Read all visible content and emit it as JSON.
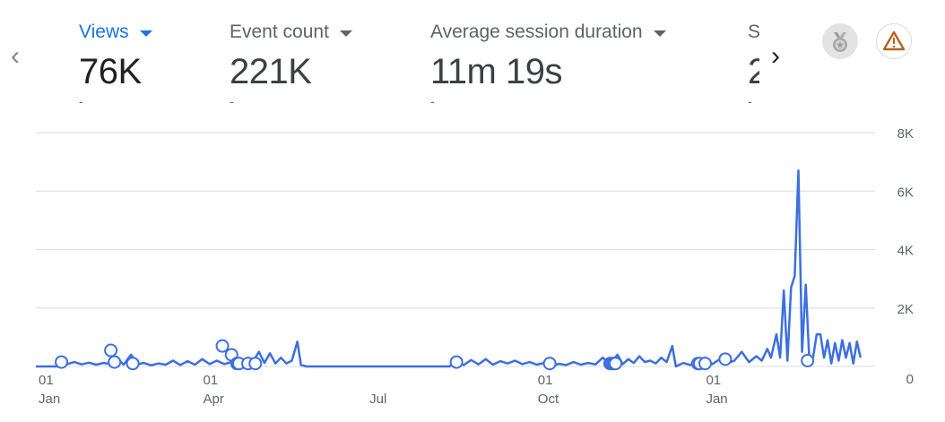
{
  "nav": {
    "prev_icon": "‹",
    "next_icon": "›"
  },
  "metrics": [
    {
      "label": "Views",
      "value": "76K",
      "delta": "-",
      "active": true
    },
    {
      "label": "Event count",
      "value": "221K",
      "delta": "-",
      "active": false
    },
    {
      "label": "Average session duration",
      "value": "11m 19s",
      "delta": "-",
      "active": false
    },
    {
      "label": "S",
      "value": "2",
      "delta": "-",
      "active": false
    }
  ],
  "badges": {
    "medal_icon": "medal-icon",
    "warning_icon": "warning-icon"
  },
  "colors": {
    "accent": "#1a73e8",
    "line": "#3c6fe0",
    "grid": "#dadce0",
    "warning": "#b5651d"
  },
  "chart_data": {
    "type": "line",
    "y_ticks": [
      "8K",
      "6K",
      "4K",
      "2K",
      "0"
    ],
    "y_tick_values": [
      8000,
      6000,
      4000,
      2000,
      0
    ],
    "ylim": [
      0,
      8000
    ],
    "x_ticks": [
      {
        "day": "01",
        "month": "Jan",
        "date": "2023-01-01"
      },
      {
        "day": "01",
        "month": "Apr",
        "date": "2023-04-01"
      },
      {
        "day": "",
        "month": "Jul",
        "date": "2023-07-01"
      },
      {
        "day": "01",
        "month": "Oct",
        "date": "2023-10-01"
      },
      {
        "day": "01",
        "month": "Jan",
        "date": "2024-01-01"
      }
    ],
    "x_range": [
      "2023-01-01",
      "2024-03-31"
    ],
    "series": [
      {
        "values": [
          [
            "2023-01-01",
            0
          ],
          [
            "2023-01-14",
            0
          ],
          [
            "2023-01-22",
            150
          ],
          [
            "2023-01-26",
            70
          ],
          [
            "2023-01-30",
            130
          ],
          [
            "2023-02-03",
            60
          ],
          [
            "2023-02-07",
            120
          ],
          [
            "2023-02-11",
            80
          ],
          [
            "2023-02-15",
            250
          ],
          [
            "2023-02-18",
            60
          ],
          [
            "2023-02-22",
            400
          ],
          [
            "2023-02-26",
            80
          ],
          [
            "2023-03-01",
            120
          ],
          [
            "2023-03-05",
            40
          ],
          [
            "2023-03-09",
            100
          ],
          [
            "2023-03-13",
            60
          ],
          [
            "2023-03-17",
            200
          ],
          [
            "2023-03-21",
            50
          ],
          [
            "2023-03-25",
            180
          ],
          [
            "2023-03-29",
            60
          ],
          [
            "2023-04-02",
            250
          ],
          [
            "2023-04-06",
            80
          ],
          [
            "2023-04-10",
            200
          ],
          [
            "2023-04-14",
            80
          ],
          [
            "2023-04-18",
            150
          ],
          [
            "2023-04-21",
            300
          ],
          [
            "2023-04-24",
            120
          ],
          [
            "2023-04-27",
            300
          ],
          [
            "2023-04-30",
            200
          ],
          [
            "2023-05-03",
            500
          ],
          [
            "2023-05-06",
            120
          ],
          [
            "2023-05-09",
            450
          ],
          [
            "2023-05-12",
            100
          ],
          [
            "2023-05-15",
            300
          ],
          [
            "2023-05-18",
            100
          ],
          [
            "2023-05-21",
            200
          ],
          [
            "2023-05-24",
            850
          ],
          [
            "2023-05-26",
            50
          ],
          [
            "2023-05-29",
            0
          ],
          [
            "2023-08-15",
            0
          ],
          [
            "2023-08-19",
            150
          ],
          [
            "2023-08-23",
            50
          ],
          [
            "2023-08-27",
            220
          ],
          [
            "2023-08-31",
            70
          ],
          [
            "2023-09-04",
            250
          ],
          [
            "2023-09-08",
            60
          ],
          [
            "2023-09-12",
            180
          ],
          [
            "2023-09-16",
            100
          ],
          [
            "2023-09-20",
            200
          ],
          [
            "2023-09-24",
            80
          ],
          [
            "2023-09-28",
            150
          ],
          [
            "2023-10-02",
            60
          ],
          [
            "2023-10-06",
            120
          ],
          [
            "2023-10-10",
            0
          ],
          [
            "2023-10-14",
            90
          ],
          [
            "2023-10-18",
            50
          ],
          [
            "2023-10-22",
            150
          ],
          [
            "2023-10-26",
            60
          ],
          [
            "2023-10-30",
            120
          ],
          [
            "2023-11-03",
            70
          ],
          [
            "2023-11-07",
            300
          ],
          [
            "2023-11-11",
            80
          ],
          [
            "2023-11-15",
            400
          ],
          [
            "2023-11-18",
            80
          ],
          [
            "2023-11-21",
            250
          ],
          [
            "2023-11-24",
            120
          ],
          [
            "2023-11-27",
            350
          ],
          [
            "2023-11-30",
            150
          ],
          [
            "2023-12-03",
            200
          ],
          [
            "2023-12-06",
            100
          ],
          [
            "2023-12-09",
            300
          ],
          [
            "2023-12-12",
            150
          ],
          [
            "2023-12-15",
            700
          ],
          [
            "2023-12-17",
            0
          ],
          [
            "2023-12-21",
            120
          ],
          [
            "2023-12-25",
            50
          ],
          [
            "2023-12-29",
            180
          ],
          [
            "2024-01-02",
            300
          ],
          [
            "2024-01-06",
            80
          ],
          [
            "2024-01-10",
            250
          ],
          [
            "2024-01-14",
            100
          ],
          [
            "2024-01-18",
            200
          ],
          [
            "2024-01-22",
            500
          ],
          [
            "2024-01-26",
            150
          ],
          [
            "2024-01-30",
            350
          ],
          [
            "2024-02-02",
            200
          ],
          [
            "2024-02-05",
            600
          ],
          [
            "2024-02-07",
            300
          ],
          [
            "2024-02-10",
            1100
          ],
          [
            "2024-02-12",
            300
          ],
          [
            "2024-02-14",
            2600
          ],
          [
            "2024-02-16",
            200
          ],
          [
            "2024-02-18",
            2700
          ],
          [
            "2024-02-20",
            3100
          ],
          [
            "2024-02-22",
            6700
          ],
          [
            "2024-02-24",
            500
          ],
          [
            "2024-02-26",
            2800
          ],
          [
            "2024-02-28",
            200
          ],
          [
            "2024-03-01",
            300
          ],
          [
            "2024-03-03",
            1100
          ],
          [
            "2024-03-05",
            1100
          ],
          [
            "2024-03-07",
            300
          ],
          [
            "2024-03-09",
            900
          ],
          [
            "2024-03-11",
            100
          ],
          [
            "2024-03-13",
            800
          ],
          [
            "2024-03-15",
            200
          ],
          [
            "2024-03-17",
            900
          ],
          [
            "2024-03-19",
            300
          ],
          [
            "2024-03-21",
            800
          ],
          [
            "2024-03-23",
            100
          ],
          [
            "2024-03-25",
            850
          ],
          [
            "2024-03-27",
            300
          ]
        ]
      }
    ],
    "annotations": [
      "2023-01-15",
      "2023-02-11",
      "2023-02-13",
      "2023-02-23",
      "2023-04-13",
      "2023-04-18",
      "2023-04-21",
      "2023-04-22",
      "2023-04-27",
      "2023-05-01",
      "2023-08-19",
      "2023-10-09",
      "2023-11-11",
      "2023-11-12",
      "2023-11-13",
      "2023-11-14",
      "2023-12-29",
      "2023-12-30",
      "2024-01-02",
      "2024-01-13",
      "2024-02-27"
    ],
    "annotation_values": [
      150,
      550,
      150,
      100,
      700,
      400,
      100,
      100,
      100,
      100,
      150,
      100,
      100,
      100,
      100,
      100,
      100,
      100,
      100,
      250,
      200
    ],
    "grid": true
  }
}
